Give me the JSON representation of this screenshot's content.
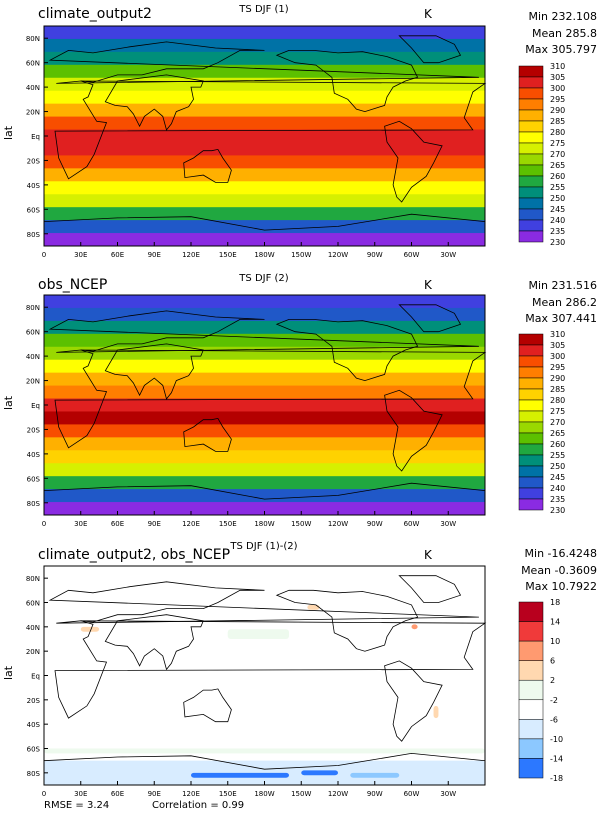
{
  "chart_data": [
    {
      "type": "heatmap",
      "title": "climate_output2",
      "center_title": "TS DJF (1)",
      "units": "K",
      "stats": {
        "min": "Min 232.108",
        "mean": "Mean 285.8",
        "max": "Max 305.797"
      },
      "ylabel": "lat",
      "x_ticks": [
        "0",
        "30E",
        "60E",
        "90E",
        "120E",
        "150E",
        "180W",
        "150W",
        "120W",
        "90W",
        "60W",
        "30W"
      ],
      "y_ticks": [
        "80N",
        "60N",
        "40N",
        "20N",
        "Eq",
        "20S",
        "40S",
        "60S",
        "80S"
      ],
      "colorbar_levels": [
        "310",
        "305",
        "300",
        "295",
        "290",
        "285",
        "280",
        "275",
        "270",
        "265",
        "260",
        "255",
        "250",
        "245",
        "240",
        "235",
        "230"
      ],
      "colors": [
        "#b40000",
        "#e02020",
        "#f84e00",
        "#ff7e00",
        "#ffb000",
        "#ffd200",
        "#ffff00",
        "#d6f000",
        "#9ad800",
        "#5cc000",
        "#20a840",
        "#008f7a",
        "#0072a6",
        "#2058c8",
        "#4040e0",
        "#8a2be2"
      ]
    },
    {
      "type": "heatmap",
      "title": "obs_NCEP",
      "center_title": "TS DJF (2)",
      "units": "K",
      "stats": {
        "min": "Min 231.516",
        "mean": "Mean 286.2",
        "max": "Max 307.441"
      },
      "ylabel": "lat",
      "x_ticks": [
        "0",
        "30E",
        "60E",
        "90E",
        "120E",
        "150E",
        "180W",
        "150W",
        "120W",
        "90W",
        "60W",
        "30W"
      ],
      "y_ticks": [
        "80N",
        "60N",
        "40N",
        "20N",
        "Eq",
        "20S",
        "40S",
        "60S",
        "80S"
      ],
      "colorbar_levels": [
        "310",
        "305",
        "300",
        "295",
        "290",
        "285",
        "280",
        "275",
        "270",
        "265",
        "260",
        "255",
        "250",
        "245",
        "240",
        "235",
        "230"
      ],
      "colors": [
        "#b40000",
        "#e02020",
        "#f84e00",
        "#ff7e00",
        "#ffb000",
        "#ffd200",
        "#ffff00",
        "#d6f000",
        "#9ad800",
        "#5cc000",
        "#20a840",
        "#008f7a",
        "#0072a6",
        "#2058c8",
        "#4040e0",
        "#8a2be2"
      ]
    },
    {
      "type": "heatmap",
      "title": "climate_output2, obs_NCEP",
      "center_title": "TS DJF (1)-(2)",
      "units": "K",
      "stats": {
        "min": "Min -16.4248",
        "mean": "Mean -0.3609",
        "max": "Max 10.7922"
      },
      "ylabel": "lat",
      "x_ticks": [
        "0",
        "30E",
        "60E",
        "90E",
        "120E",
        "150E",
        "180W",
        "150W",
        "120W",
        "90W",
        "60W",
        "30W"
      ],
      "y_ticks": [
        "80N",
        "60N",
        "40N",
        "20N",
        "Eq",
        "20S",
        "40S",
        "60S",
        "80S"
      ],
      "colorbar_levels": [
        "18",
        "14",
        "10",
        "6",
        "2",
        "-2",
        "-6",
        "-10",
        "-14",
        "-18"
      ],
      "colors": [
        "#b8001e",
        "#f03a3a",
        "#ff9a70",
        "#ffd8b0",
        "#eefaee",
        "#ffffff",
        "#d8ecff",
        "#8cc8ff",
        "#2c78ff",
        "#0000c8"
      ],
      "footer": {
        "rmse": "RMSE = 3.24",
        "correlation": "Correlation = 0.99"
      }
    }
  ]
}
